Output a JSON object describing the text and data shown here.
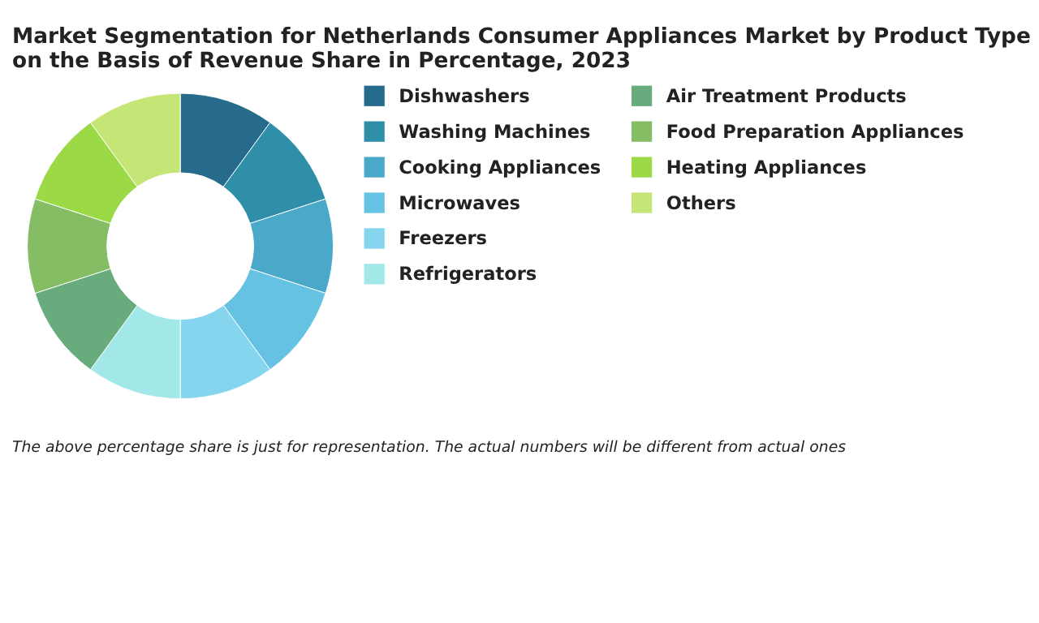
{
  "chart_data": {
    "type": "donut",
    "title": "Market Segmentation for Netherlands Consumer Appliances Market by Product Type on the Basis of Revenue Share in Percentage, 2023",
    "categories": [
      "Dishwashers",
      "Washing Machines",
      "Cooking Appliances",
      "Microwaves",
      "Freezers",
      "Refrigerators",
      "Air Treatment Products",
      "Food Preparation Appliances",
      "Heating Appliances",
      "Others"
    ],
    "values": [
      10,
      10,
      10,
      10,
      10,
      10,
      10,
      10,
      10,
      10
    ],
    "colors": [
      "#266a8c",
      "#2f8ea8",
      "#4aa8c9",
      "#66c2e3",
      "#86d5ef",
      "#a3e8e8",
      "#68ab7c",
      "#84bd63",
      "#9cd947",
      "#c5e677"
    ],
    "legend": "right",
    "annotations": [
      "The above percentage share is just for representation. The actual numbers will be different from actual ones"
    ]
  }
}
